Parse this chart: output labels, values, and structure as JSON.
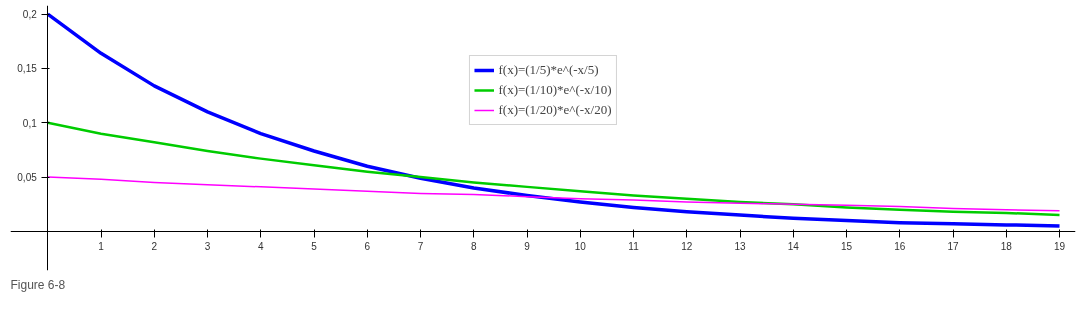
{
  "chart_data": {
    "type": "line",
    "annotations": [
      "Figure 6-8"
    ],
    "x": [
      0,
      1,
      2,
      3,
      4,
      5,
      6,
      7,
      8,
      9,
      10,
      11,
      12,
      13,
      14,
      15,
      16,
      17,
      18,
      19
    ],
    "xlim": [
      -0.7,
      19.3
    ],
    "xticks": [
      1,
      2,
      3,
      4,
      5,
      6,
      7,
      8,
      9,
      10,
      11,
      12,
      13,
      14,
      15,
      16,
      17,
      18,
      19
    ],
    "ylim": [
      -0.036,
      0.208
    ],
    "yticks": [
      {
        "value": 0.05,
        "label": "0,05"
      },
      {
        "value": 0.1,
        "label": "0,1"
      },
      {
        "value": 0.15,
        "label": "0,15"
      },
      {
        "value": 0.2,
        "label": "0,2"
      }
    ],
    "series": [
      {
        "name": "f(x)=(1/5)*e^(-x/5)",
        "color": "#0000ff",
        "values": [
          0.2,
          0.164,
          0.134,
          0.11,
          0.09,
          0.074,
          0.06,
          0.049,
          0.04,
          0.033,
          0.027,
          0.022,
          0.018,
          0.015,
          0.012,
          0.01,
          0.008,
          0.007,
          0.006,
          0.005
        ]
      },
      {
        "name": "f(x)=(1/10)*e^(-x/10)",
        "color": "#00cc00",
        "values": [
          0.1,
          0.09,
          0.082,
          0.074,
          0.067,
          0.061,
          0.055,
          0.05,
          0.045,
          0.041,
          0.037,
          0.033,
          0.03,
          0.027,
          0.025,
          0.022,
          0.02,
          0.018,
          0.017,
          0.015
        ]
      },
      {
        "name": "f(x)=(1/20)*e^(-x/20)",
        "color": "#ff00ff",
        "values": [
          0.05,
          0.048,
          0.045,
          0.043,
          0.041,
          0.039,
          0.037,
          0.035,
          0.034,
          0.032,
          0.03,
          0.029,
          0.027,
          0.026,
          0.025,
          0.024,
          0.023,
          0.021,
          0.02,
          0.019
        ]
      }
    ],
    "grid": false,
    "legend": "top",
    "marker": "none",
    "line_style": "solid"
  }
}
